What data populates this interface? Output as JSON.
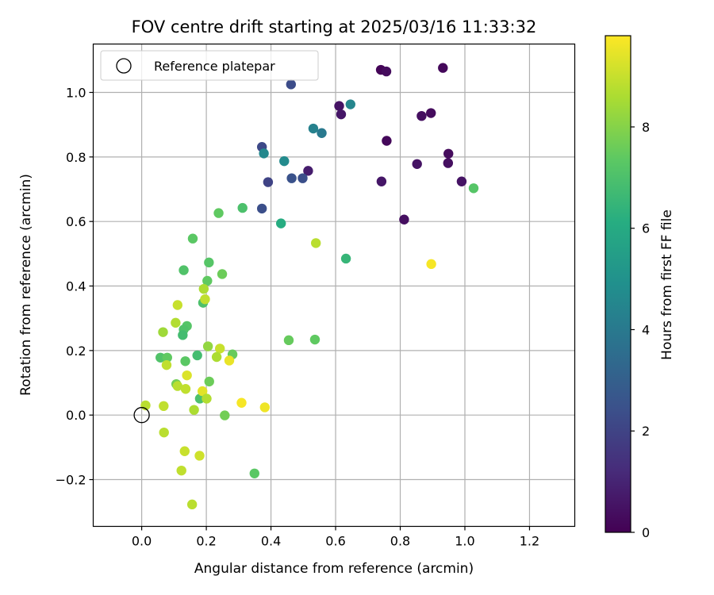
{
  "chart_data": {
    "type": "scatter",
    "title": "FOV centre drift starting at 2025/03/16 11:33:32",
    "xlabel": "Angular distance from reference (arcmin)",
    "ylabel": "Rotation from reference (arcmin)",
    "xlim": [
      -0.15,
      1.34
    ],
    "ylim": [
      -0.345,
      1.15
    ],
    "xticks": [
      0.0,
      0.2,
      0.4,
      0.6,
      0.8,
      1.0,
      1.2
    ],
    "xtick_labels": [
      "0.0",
      "0.2",
      "0.4",
      "0.6",
      "0.8",
      "1.0",
      "1.2"
    ],
    "yticks": [
      -0.2,
      0.0,
      0.2,
      0.4,
      0.6,
      0.8,
      1.0
    ],
    "ytick_labels": [
      "−0.2",
      "0.0",
      "0.2",
      "0.4",
      "0.6",
      "0.8",
      "1.0"
    ],
    "grid": true,
    "legend": {
      "placement": "upper-left",
      "entries": [
        {
          "label": "Reference platepar",
          "marker": "open-circle"
        }
      ]
    },
    "reference_point": {
      "x": 0.0,
      "y": 0.0
    },
    "colorbar": {
      "label": "Hours from first FF file",
      "colormap": "viridis",
      "range": [
        0,
        9.8
      ],
      "ticks": [
        0,
        2,
        4,
        6,
        8
      ],
      "tick_labels": [
        "0",
        "2",
        "4",
        "6",
        "8"
      ]
    },
    "points": [
      {
        "x": 0.74,
        "y": 1.07,
        "c": 0.1
      },
      {
        "x": 0.757,
        "y": 1.065,
        "c": 0.3
      },
      {
        "x": 0.932,
        "y": 1.076,
        "c": 0.2
      },
      {
        "x": 0.611,
        "y": 0.958,
        "c": 0.5
      },
      {
        "x": 0.617,
        "y": 0.932,
        "c": 0.6
      },
      {
        "x": 0.866,
        "y": 0.927,
        "c": 0.4
      },
      {
        "x": 0.895,
        "y": 0.936,
        "c": 0.3
      },
      {
        "x": 0.758,
        "y": 0.85,
        "c": 0.2
      },
      {
        "x": 0.949,
        "y": 0.81,
        "c": 0.3
      },
      {
        "x": 0.948,
        "y": 0.781,
        "c": 0.4
      },
      {
        "x": 0.852,
        "y": 0.778,
        "c": 0.5
      },
      {
        "x": 0.515,
        "y": 0.757,
        "c": 0.8
      },
      {
        "x": 0.742,
        "y": 0.724,
        "c": 0.6
      },
      {
        "x": 0.99,
        "y": 0.724,
        "c": 0.5
      },
      {
        "x": 0.812,
        "y": 0.606,
        "c": 0.4
      },
      {
        "x": 0.462,
        "y": 1.025,
        "c": 2.3
      },
      {
        "x": 0.372,
        "y": 0.831,
        "c": 2.2
      },
      {
        "x": 0.391,
        "y": 0.722,
        "c": 2.0
      },
      {
        "x": 0.464,
        "y": 0.734,
        "c": 2.5
      },
      {
        "x": 0.498,
        "y": 0.734,
        "c": 2.4
      },
      {
        "x": 0.372,
        "y": 0.64,
        "c": 2.4
      },
      {
        "x": 0.646,
        "y": 0.963,
        "c": 4.5
      },
      {
        "x": 0.531,
        "y": 0.888,
        "c": 4.3
      },
      {
        "x": 0.557,
        "y": 0.874,
        "c": 4.0
      },
      {
        "x": 0.378,
        "y": 0.811,
        "c": 4.6
      },
      {
        "x": 0.441,
        "y": 0.787,
        "c": 4.7
      },
      {
        "x": 0.431,
        "y": 0.594,
        "c": 6.1
      },
      {
        "x": 0.632,
        "y": 0.485,
        "c": 6.5
      },
      {
        "x": 1.027,
        "y": 0.703,
        "c": 7.2
      },
      {
        "x": 0.312,
        "y": 0.642,
        "c": 7.0
      },
      {
        "x": 0.238,
        "y": 0.626,
        "c": 7.4
      },
      {
        "x": 0.158,
        "y": 0.547,
        "c": 7.3
      },
      {
        "x": 0.208,
        "y": 0.473,
        "c": 7.2
      },
      {
        "x": 0.13,
        "y": 0.449,
        "c": 7.1
      },
      {
        "x": 0.249,
        "y": 0.437,
        "c": 7.6
      },
      {
        "x": 0.203,
        "y": 0.416,
        "c": 7.4
      },
      {
        "x": 0.19,
        "y": 0.348,
        "c": 7.0
      },
      {
        "x": 0.14,
        "y": 0.276,
        "c": 7.2
      },
      {
        "x": 0.13,
        "y": 0.265,
        "c": 7.1
      },
      {
        "x": 0.127,
        "y": 0.248,
        "c": 6.8
      },
      {
        "x": 0.135,
        "y": 0.167,
        "c": 7.3
      },
      {
        "x": 0.058,
        "y": 0.178,
        "c": 7.1
      },
      {
        "x": 0.079,
        "y": 0.178,
        "c": 7.4
      },
      {
        "x": 0.172,
        "y": 0.185,
        "c": 6.8
      },
      {
        "x": 0.281,
        "y": 0.188,
        "c": 7.5
      },
      {
        "x": 0.455,
        "y": 0.232,
        "c": 7.5
      },
      {
        "x": 0.536,
        "y": 0.234,
        "c": 7.4
      },
      {
        "x": 0.209,
        "y": 0.104,
        "c": 7.6
      },
      {
        "x": 0.107,
        "y": 0.096,
        "c": 7.7
      },
      {
        "x": 0.18,
        "y": 0.051,
        "c": 7.0
      },
      {
        "x": 0.257,
        "y": -0.001,
        "c": 7.7
      },
      {
        "x": 0.349,
        "y": -0.181,
        "c": 7.3
      },
      {
        "x": 0.539,
        "y": 0.533,
        "c": 8.8
      },
      {
        "x": 0.192,
        "y": 0.391,
        "c": 8.6
      },
      {
        "x": 0.196,
        "y": 0.359,
        "c": 8.9
      },
      {
        "x": 0.111,
        "y": 0.341,
        "c": 9.0
      },
      {
        "x": 0.105,
        "y": 0.286,
        "c": 8.7
      },
      {
        "x": 0.066,
        "y": 0.257,
        "c": 8.4
      },
      {
        "x": 0.205,
        "y": 0.213,
        "c": 8.2
      },
      {
        "x": 0.242,
        "y": 0.206,
        "c": 9.0
      },
      {
        "x": 0.232,
        "y": 0.18,
        "c": 8.6
      },
      {
        "x": 0.271,
        "y": 0.169,
        "c": 9.5
      },
      {
        "x": 0.077,
        "y": 0.155,
        "c": 8.9
      },
      {
        "x": 0.14,
        "y": 0.123,
        "c": 9.3
      },
      {
        "x": 0.111,
        "y": 0.09,
        "c": 8.8
      },
      {
        "x": 0.136,
        "y": 0.081,
        "c": 8.9
      },
      {
        "x": 0.188,
        "y": 0.074,
        "c": 9.4
      },
      {
        "x": 0.201,
        "y": 0.051,
        "c": 8.7
      },
      {
        "x": 0.309,
        "y": 0.038,
        "c": 9.7
      },
      {
        "x": 0.381,
        "y": 0.024,
        "c": 9.6
      },
      {
        "x": 0.012,
        "y": 0.03,
        "c": 8.8
      },
      {
        "x": 0.068,
        "y": 0.028,
        "c": 8.9
      },
      {
        "x": 0.162,
        "y": 0.016,
        "c": 8.6
      },
      {
        "x": 0.069,
        "y": -0.054,
        "c": 8.8
      },
      {
        "x": 0.133,
        "y": -0.112,
        "c": 9.0
      },
      {
        "x": 0.179,
        "y": -0.126,
        "c": 9.1
      },
      {
        "x": 0.123,
        "y": -0.172,
        "c": 8.9
      },
      {
        "x": 0.156,
        "y": -0.277,
        "c": 8.8
      },
      {
        "x": 0.896,
        "y": 0.468,
        "c": 9.7
      }
    ]
  }
}
